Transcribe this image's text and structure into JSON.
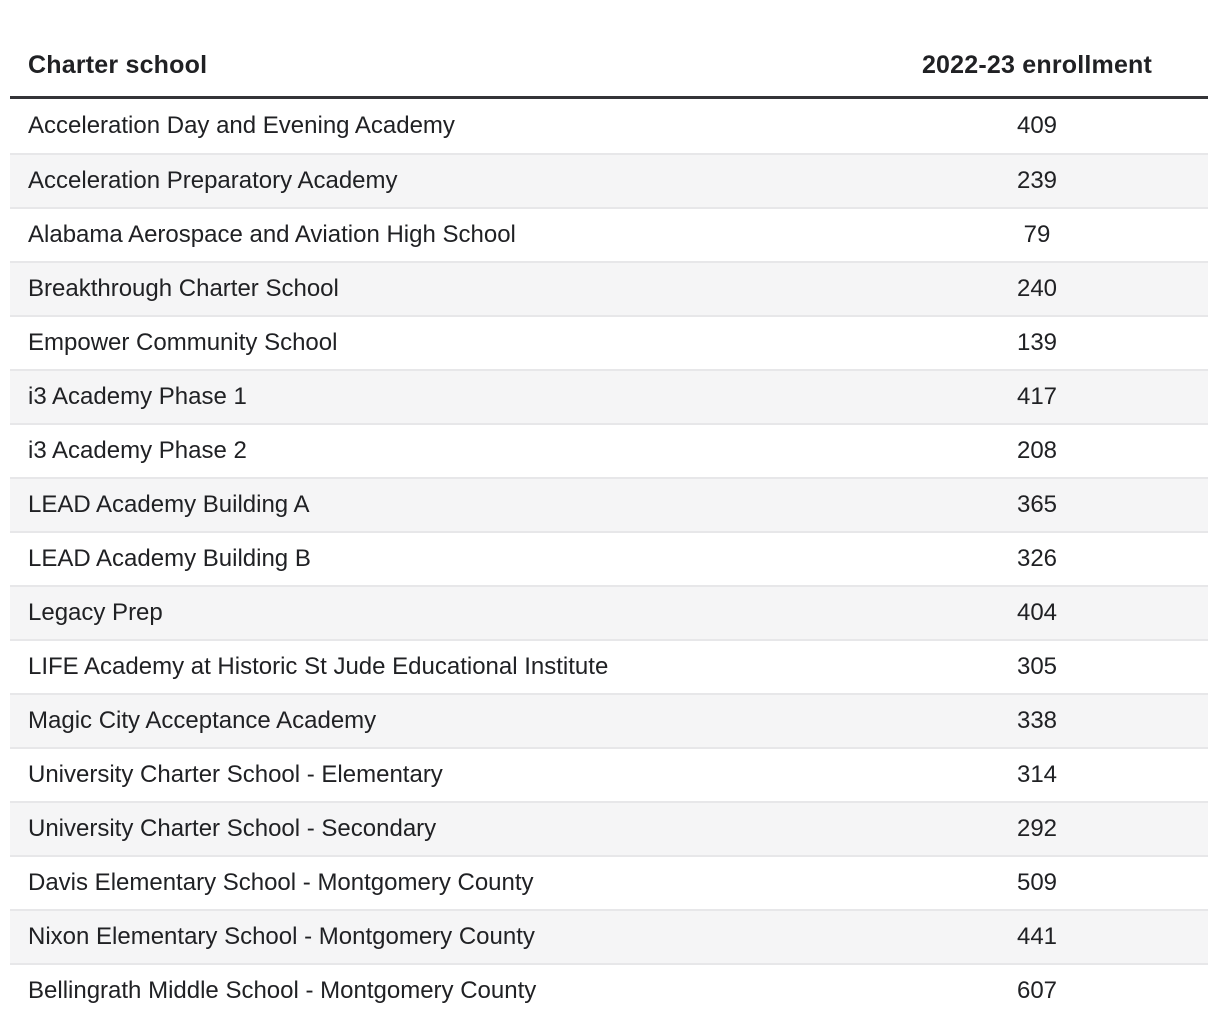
{
  "colors": {
    "text": "#202124",
    "accent_rule": "#343438",
    "divider": "#e7e7e9",
    "row_alt": "#f5f5f6"
  },
  "chart_data": {
    "type": "table",
    "title": "",
    "legend": "none",
    "grid": "alternating-row-stripes",
    "columns": [
      "Charter school",
      "2022-23 enrollment"
    ],
    "rows": [
      [
        "Acceleration Day and Evening Academy",
        409
      ],
      [
        "Acceleration Preparatory Academy",
        239
      ],
      [
        "Alabama Aerospace and Aviation High School",
        79
      ],
      [
        "Breakthrough Charter School",
        240
      ],
      [
        "Empower Community School",
        139
      ],
      [
        "i3 Academy Phase 1",
        417
      ],
      [
        "i3 Academy Phase 2",
        208
      ],
      [
        "LEAD Academy Building A",
        365
      ],
      [
        "LEAD Academy Building B",
        326
      ],
      [
        "Legacy Prep",
        404
      ],
      [
        "LIFE Academy at Historic St Jude Educational Institute",
        305
      ],
      [
        "Magic City Acceptance Academy",
        338
      ],
      [
        "University Charter School - Elementary",
        314
      ],
      [
        "University Charter School - Secondary",
        292
      ],
      [
        "Davis Elementary School - Montgomery County",
        509
      ],
      [
        "Nixon Elementary School - Montgomery County",
        441
      ],
      [
        "Bellingrath Middle School - Montgomery County",
        607
      ]
    ]
  }
}
